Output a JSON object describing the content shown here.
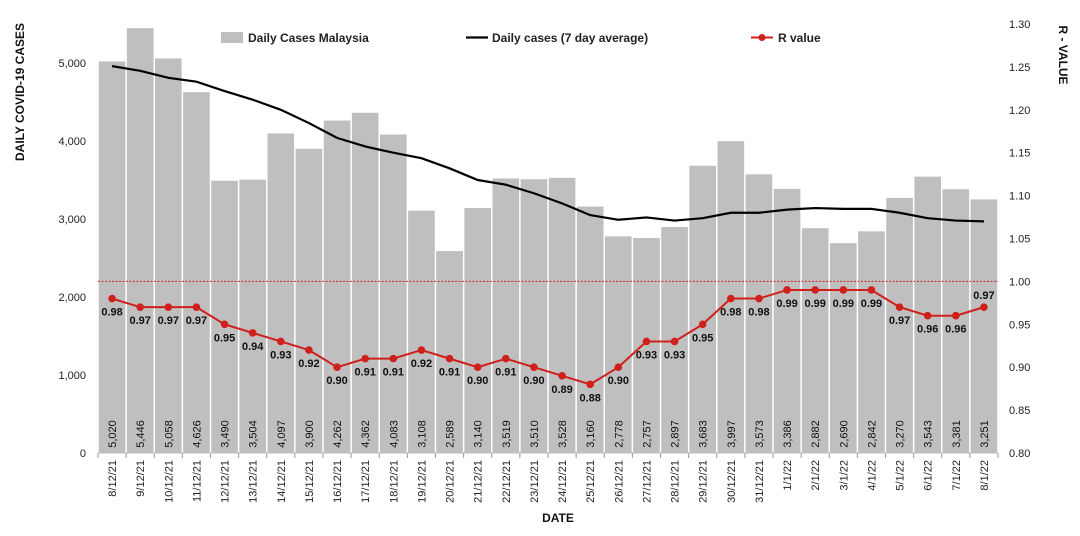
{
  "chart_data": {
    "type": "bar",
    "ylabel": "DAILY COVID-19 CASES",
    "y2label": "R - VALUE",
    "xlabel": "DATE",
    "ylim": [
      0,
      5500
    ],
    "y2lim": [
      0.8,
      1.3
    ],
    "y_ticks": [
      "0",
      "1,000",
      "2,000",
      "3,000",
      "4,000",
      "5,000"
    ],
    "y_tick_values": [
      0,
      1000,
      2000,
      3000,
      4000,
      5000
    ],
    "y2_ticks": [
      "0.80",
      "0.85",
      "0.90",
      "0.95",
      "1.00",
      "1.05",
      "1.10",
      "1.15",
      "1.20",
      "1.25",
      "1.30"
    ],
    "y2_tick_values": [
      0.8,
      0.85,
      0.9,
      0.95,
      1.0,
      1.05,
      1.1,
      1.15,
      1.2,
      1.25,
      1.3
    ],
    "reference_line": 1.0,
    "legend_position": "top",
    "categories": [
      "8/12/21",
      "9/12/21",
      "10/12/21",
      "11/12/21",
      "12/12/21",
      "13/12/21",
      "14/12/21",
      "15/12/21",
      "16/12/21",
      "17/12/21",
      "18/12/21",
      "19/12/21",
      "20/12/21",
      "21/12/21",
      "22/12/21",
      "23/12/21",
      "24/12/21",
      "25/12/21",
      "26/12/21",
      "27/12/21",
      "28/12/21",
      "29/12/21",
      "30/12/21",
      "31/12/21",
      "1/1/22",
      "2/1/22",
      "3/1/22",
      "4/1/22",
      "5/1/22",
      "6/1/22",
      "7/1/22",
      "8/1/22"
    ],
    "series": [
      {
        "name": "Daily Cases Malaysia",
        "type": "bar",
        "axis": "left",
        "color": "#bfbfbf",
        "values": [
          5020,
          5446,
          5058,
          4626,
          3490,
          3504,
          4097,
          3900,
          4262,
          4362,
          4083,
          3108,
          2589,
          3140,
          3519,
          3510,
          3528,
          3160,
          2778,
          2757,
          2897,
          3683,
          3997,
          3573,
          3386,
          2882,
          2690,
          2842,
          3270,
          3543,
          3381,
          3251
        ],
        "labels": [
          "5,020",
          "5,446",
          "5,058",
          "4,626",
          "3,490",
          "3,504",
          "4,097",
          "3,900",
          "4,262",
          "4,362",
          "4,083",
          "3,108",
          "2,589",
          "3,140",
          "3,519",
          "3,510",
          "3,528",
          "3,160",
          "2,778",
          "2,757",
          "2,897",
          "3,683",
          "3,997",
          "3,573",
          "3,386",
          "2,882",
          "2,690",
          "2,842",
          "3,270",
          "3,543",
          "3,381",
          "3,251"
        ]
      },
      {
        "name": "Daily cases (7 day average)",
        "type": "line",
        "axis": "left",
        "color": "#000000",
        "values": [
          4960,
          4900,
          4810,
          4760,
          4640,
          4530,
          4400,
          4230,
          4040,
          3930,
          3850,
          3780,
          3650,
          3500,
          3440,
          3330,
          3200,
          3050,
          2990,
          3020,
          2980,
          3010,
          3080,
          3080,
          3120,
          3140,
          3130,
          3130,
          3080,
          3010,
          2980,
          2970
        ]
      },
      {
        "name": "R value",
        "type": "line",
        "axis": "right",
        "color": "#d0201c",
        "values": [
          0.98,
          0.97,
          0.97,
          0.97,
          0.95,
          0.94,
          0.93,
          0.92,
          0.9,
          0.91,
          0.91,
          0.92,
          0.91,
          0.9,
          0.91,
          0.9,
          0.89,
          0.88,
          0.9,
          0.93,
          0.93,
          0.95,
          0.98,
          0.98,
          0.99,
          0.99,
          0.99,
          0.99,
          0.97,
          0.96,
          0.96,
          0.97
        ],
        "labels": [
          "0.98",
          "0.97",
          "0.97",
          "0.97",
          "0.95",
          "0.94",
          "0.93",
          "0.92",
          "0.90",
          "0.91",
          "0.91",
          "0.92",
          "0.91",
          "0.90",
          "0.91",
          "0.90",
          "0.89",
          "0.88",
          "0.90",
          "0.93",
          "0.93",
          "0.95",
          "0.98",
          "0.98",
          "0.99",
          "0.99",
          "0.99",
          "0.99",
          "0.97",
          "0.96",
          "0.96",
          "0.97"
        ]
      }
    ]
  }
}
